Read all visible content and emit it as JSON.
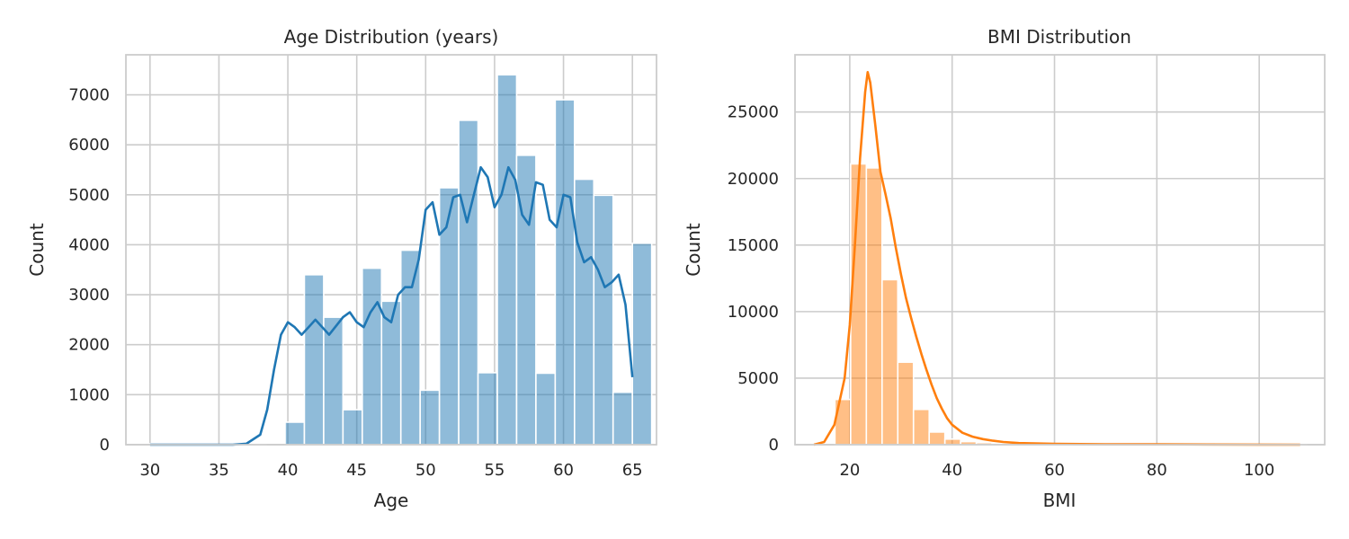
{
  "chart_data": [
    {
      "type": "bar",
      "subtype": "histogram-with-kde",
      "title": "Age Distribution (years)",
      "xlabel": "Age",
      "ylabel": "Count",
      "xlim": [
        28.25,
        66.75
      ],
      "ylim": [
        0,
        7800
      ],
      "xticks": [
        30,
        35,
        40,
        45,
        50,
        55,
        60,
        65
      ],
      "yticks": [
        0,
        1000,
        2000,
        3000,
        4000,
        5000,
        6000,
        7000
      ],
      "grid": true,
      "color": "#1f77b4",
      "bins": {
        "x0": 30,
        "width": 1.4,
        "counts": [
          20,
          5,
          5,
          5,
          5,
          5,
          0,
          450,
          3400,
          2550,
          700,
          3530,
          2870,
          3890,
          1090,
          5140,
          6490,
          1440,
          7400,
          5790,
          1430,
          6900,
          5310,
          4990,
          1050,
          4030
        ]
      },
      "kde": {
        "x": [
          30,
          33,
          36,
          37,
          38,
          38.5,
          39,
          39.5,
          40,
          40.5,
          41,
          41.5,
          42,
          43,
          44,
          44.5,
          45,
          45.5,
          46,
          46.5,
          47,
          47.5,
          48,
          48.5,
          49,
          49.5,
          50,
          50.5,
          51,
          51.5,
          52,
          52.5,
          53,
          53.5,
          54,
          54.5,
          55,
          55.5,
          56,
          56.5,
          57,
          57.5,
          58,
          58.5,
          59,
          59.5,
          60,
          60.5,
          61,
          61.5,
          62,
          62.5,
          63,
          63.5,
          64,
          64.5,
          65
        ],
        "y": [
          0,
          0,
          0,
          20,
          200,
          700,
          1500,
          2200,
          2450,
          2350,
          2200,
          2350,
          2500,
          2200,
          2550,
          2650,
          2450,
          2350,
          2650,
          2850,
          2550,
          2450,
          3000,
          3150,
          3150,
          3700,
          4700,
          4850,
          4200,
          4350,
          4950,
          5000,
          4450,
          5000,
          5550,
          5350,
          4750,
          5000,
          5550,
          5300,
          4600,
          4400,
          5250,
          5200,
          4500,
          4350,
          5000,
          4950,
          4050,
          3650,
          3750,
          3500,
          3150,
          3250,
          3400,
          2800,
          1350
        ]
      }
    },
    {
      "type": "bar",
      "subtype": "histogram-with-kde",
      "title": "BMI Distribution",
      "xlabel": "BMI",
      "ylabel": "Count",
      "xlim": [
        9.3,
        112.8
      ],
      "ylim": [
        0,
        29300
      ],
      "xticks": [
        20,
        40,
        60,
        80,
        100
      ],
      "yticks": [
        0,
        5000,
        10000,
        15000,
        20000,
        25000
      ],
      "grid": true,
      "color": "#ff7f0e",
      "bins": {
        "x0": 17.1,
        "width": 3.07,
        "counts": [
          3400,
          21100,
          20800,
          12400,
          6200,
          2650,
          950,
          420,
          230,
          150,
          110,
          90,
          70,
          50,
          40,
          40,
          35,
          30,
          30,
          30,
          30,
          25,
          25,
          25,
          25,
          25,
          25,
          20,
          20,
          20
        ]
      },
      "kde": {
        "x": [
          13,
          15,
          17,
          19,
          20,
          21,
          22,
          23,
          23.5,
          24,
          25,
          26,
          27,
          28,
          29,
          30,
          31,
          32,
          33,
          34,
          35,
          36,
          37,
          38,
          39,
          40,
          42,
          44,
          46,
          48,
          50,
          53,
          56,
          60,
          70,
          80,
          90,
          100,
          108
        ],
        "y": [
          0,
          200,
          1500,
          5000,
          9000,
          15000,
          21500,
          26500,
          28000,
          27200,
          24000,
          20500,
          18800,
          17000,
          14800,
          12800,
          11000,
          9500,
          8100,
          6800,
          5600,
          4500,
          3500,
          2700,
          2000,
          1500,
          900,
          600,
          420,
          300,
          200,
          120,
          100,
          60,
          30,
          25,
          15,
          10,
          0
        ]
      }
    }
  ]
}
